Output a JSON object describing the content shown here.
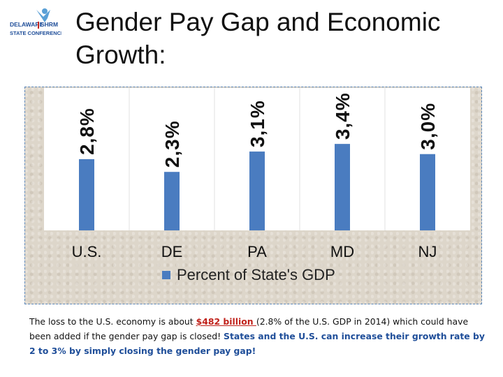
{
  "logo": {
    "line1": "DELAWARE",
    "line2": "SHRM",
    "line3": "STATE CONFERENCE",
    "colors": {
      "blue": "#1f4e99",
      "red": "#c0221b",
      "light": "#5aa0d6"
    }
  },
  "title": "Gender Pay Gap and Economic Growth:",
  "chart_data": {
    "type": "bar",
    "title": "",
    "categories": [
      "U.S.",
      "DE",
      "PA",
      "MD",
      "NJ"
    ],
    "series": [
      {
        "name": "Percent of State's GDP",
        "values": [
          2.8,
          2.3,
          3.1,
          3.4,
          3.0
        ],
        "labels": [
          "2,8%",
          "2,3%",
          "3,1%",
          "3,4%",
          "3,0%"
        ],
        "color": "#4a7cc0"
      }
    ],
    "xlabel": "",
    "ylabel": "",
    "ylim": [
      0,
      5.6
    ],
    "grid": true,
    "legend": "bottom"
  },
  "note": {
    "part1": "The loss to the U.S. economy is about ",
    "amount": "$482 billion ",
    "part2": "(2.8% of the U.S. GDP in 2014) which could have been added if the gender pay gap is closed! ",
    "highlight": "States and the U.S. can increase their growth rate by 2 to 3% by simply closing the gender pay gap!"
  }
}
